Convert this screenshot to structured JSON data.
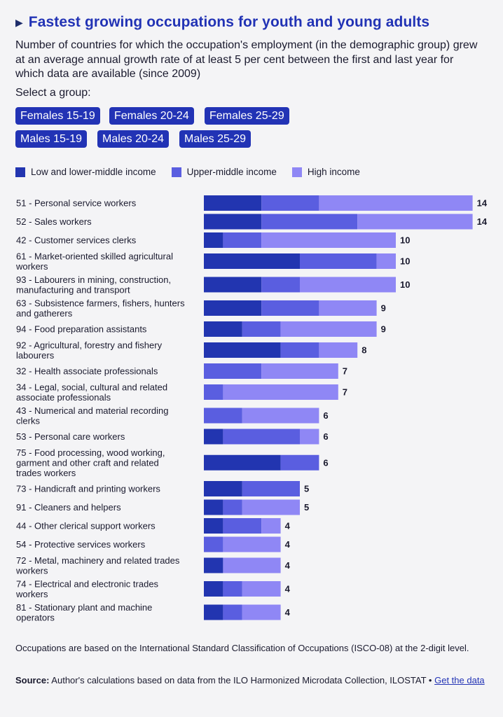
{
  "header": {
    "arrow": "▶",
    "title": "Fastest growing occupations for youth and young adults",
    "subtitle": "Number of countries for which the occupation's employment (in the demographic group) grew at an average annual growth rate of at least 5 per cent between the first and last year for which data are available (since 2009)"
  },
  "selector": {
    "label": "Select a group:",
    "options": [
      "Females 15-19",
      "Females 20-24",
      "Females 25-29",
      "Males 15-19",
      "Males 20-24",
      "Males 25-29"
    ],
    "selected": "Females 15-19"
  },
  "colors": {
    "low": "#2235b0",
    "upper": "#5a5ee0",
    "high": "#8f87f5",
    "active_button": "#e8505b",
    "button": "#2233b5"
  },
  "chart_data": {
    "type": "bar",
    "orientation": "horizontal",
    "stacked": true,
    "legend_position": "top",
    "categories": [
      "51 - Personal service workers",
      "52 - Sales workers",
      "42 - Customer services clerks",
      "61 - Market-oriented skilled agricultural workers",
      "93 - Labourers in mining, construction, manufacturing and transport",
      "63 - Subsistence farmers, fishers, hunters and gatherers",
      "94 - Food preparation assistants",
      "92 - Agricultural, forestry and fishery labourers",
      "32 - Health associate professionals",
      "34 - Legal, social, cultural and related associate professionals",
      "43 - Numerical and material recording clerks",
      "53 - Personal care workers",
      "75 - Food processing, wood working, garment and other craft and related trades workers",
      "73 - Handicraft and printing workers",
      "91 - Cleaners and helpers",
      "44 - Other clerical support workers",
      "54 - Protective services workers",
      "72 - Metal, machinery and related trades workers",
      "74 - Electrical and electronic trades workers",
      "81 - Stationary plant and machine operators"
    ],
    "category_lines": [
      [
        "51 - Personal service workers"
      ],
      [
        "52 - Sales workers"
      ],
      [
        "42 - Customer services clerks"
      ],
      [
        "61 - Market-oriented skilled agricultural",
        "workers"
      ],
      [
        "93 - Labourers in mining, construction,",
        "manufacturing and transport"
      ],
      [
        "63 - Subsistence farmers, fishers, hunters",
        "and gatherers"
      ],
      [
        "94 - Food preparation assistants"
      ],
      [
        "92 - Agricultural, forestry and fishery",
        "labourers"
      ],
      [
        "32 - Health associate professionals"
      ],
      [
        "34 - Legal, social, cultural and related",
        "associate professionals"
      ],
      [
        "43 - Numerical and material recording",
        "clerks"
      ],
      [
        "53 - Personal care workers"
      ],
      [
        "75 - Food processing, wood working,",
        "garment and other craft and related",
        "trades workers"
      ],
      [
        "73 - Handicraft and printing workers"
      ],
      [
        "91 - Cleaners and helpers"
      ],
      [
        "44 - Other clerical support workers"
      ],
      [
        "54 - Protective services workers"
      ],
      [
        "72 - Metal, machinery and related trades",
        "workers"
      ],
      [
        "74 - Electrical and electronic trades",
        "workers"
      ],
      [
        "81 - Stationary plant and machine",
        "operators"
      ]
    ],
    "series": [
      {
        "name": "Low and lower-middle income",
        "color_key": "low",
        "values": [
          3,
          3,
          1,
          5,
          3,
          3,
          2,
          4,
          0,
          0,
          0,
          1,
          4,
          2,
          1,
          1,
          0,
          1,
          1,
          1
        ]
      },
      {
        "name": "Upper-middle income",
        "color_key": "upper",
        "values": [
          3,
          5,
          2,
          4,
          2,
          3,
          2,
          2,
          3,
          1,
          2,
          4,
          2,
          3,
          1,
          2,
          1,
          0,
          1,
          1
        ]
      },
      {
        "name": "High income",
        "color_key": "high",
        "values": [
          8,
          6,
          7,
          1,
          5,
          3,
          5,
          2,
          4,
          6,
          4,
          1,
          0,
          0,
          3,
          1,
          3,
          3,
          2,
          2
        ]
      }
    ],
    "totals": [
      14,
      14,
      10,
      10,
      10,
      9,
      9,
      8,
      7,
      7,
      6,
      6,
      6,
      5,
      5,
      4,
      4,
      4,
      4,
      4
    ],
    "xlim": [
      0,
      14
    ],
    "grid": false
  },
  "footer": {
    "note": "Occupations are based on the International Standard Classification of Occupations (ISCO-08) at the 2-digit level.",
    "source_label": "Source:",
    "source_text": " Author's calculations based on data from the ILO Harmonized Microdata Collection, ILOSTAT • ",
    "link_text": "Get the data"
  }
}
